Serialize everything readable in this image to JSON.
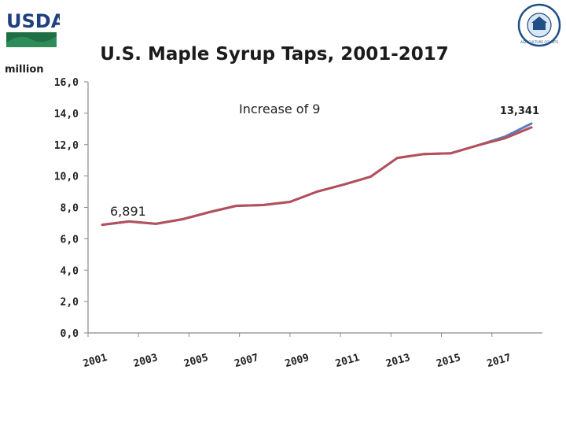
{
  "logo_text": "USDA",
  "seal_text": "AGRICULTURE COUNTS",
  "chart_data": {
    "type": "line",
    "title": "U.S. Maple  Syrup Taps, 2001-2017",
    "unit_label": "million",
    "x": [
      2001,
      2002,
      2003,
      2004,
      2005,
      2006,
      2007,
      2008,
      2009,
      2010,
      2011,
      2012,
      2013,
      2014,
      2015,
      2016,
      2017
    ],
    "x_tick_labels": [
      "2001",
      "2003",
      "2005",
      "2007",
      "2009",
      "2011",
      "2013",
      "2015",
      "2017"
    ],
    "y_tick_labels": [
      "0,0",
      "2,0",
      "4,0",
      "6,0",
      "8,0",
      "10,0",
      "12,0",
      "14,0",
      "16,0"
    ],
    "ylim": [
      0,
      16
    ],
    "series": [
      {
        "color": "#5a7fb8",
        "values": [
          6.891,
          7.1,
          6.95,
          7.25,
          7.7,
          8.1,
          8.15,
          8.35,
          9.0,
          9.45,
          9.95,
          11.15,
          11.4,
          11.45,
          11.95,
          12.5,
          13.341
        ]
      },
      {
        "color": "#b5505a",
        "values": [
          6.891,
          7.1,
          6.95,
          7.25,
          7.7,
          8.1,
          8.15,
          8.35,
          9.0,
          9.45,
          9.95,
          11.15,
          11.4,
          11.45,
          11.95,
          12.4,
          13.1
        ]
      }
    ],
    "annotations": {
      "start_value": "6,891",
      "end_value": "13,341",
      "increase": "Increase of 9"
    },
    "grid": false,
    "legend": "none"
  }
}
